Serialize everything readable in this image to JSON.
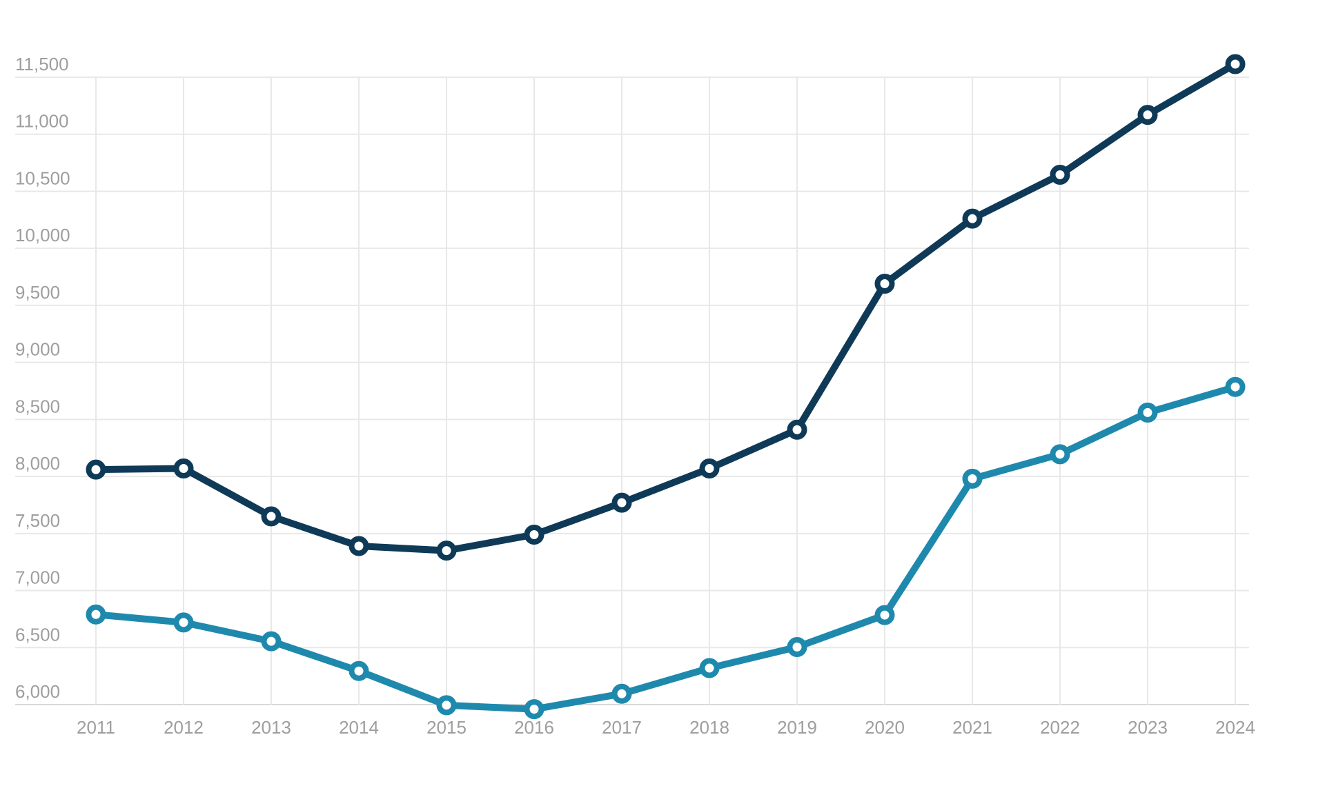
{
  "page": {
    "background": "#ffffff"
  },
  "chart_data": {
    "type": "line",
    "title": "",
    "xlabel": "",
    "ylabel": "",
    "categories": [
      "2011",
      "2012",
      "2013",
      "2014",
      "2015",
      "2016",
      "2017",
      "2018",
      "2019",
      "2020",
      "2021",
      "2022",
      "2023",
      "2024"
    ],
    "series": [
      {
        "name": "dark-navy-line",
        "color": "#0f3a57",
        "values": [
          8060,
          8070,
          7650,
          7390,
          7350,
          7490,
          7770,
          8070,
          8410,
          9690,
          10260,
          10645,
          11170,
          11615
        ]
      },
      {
        "name": "teal-line",
        "color": "#1e89ad",
        "values": [
          6790,
          6720,
          6555,
          6295,
          5995,
          5960,
          6095,
          6320,
          6505,
          6785,
          7980,
          8195,
          8560,
          8785
        ]
      }
    ],
    "y_ticks": [
      {
        "label": "11,500",
        "value": 11500
      },
      {
        "label": "11,000",
        "value": 11000
      },
      {
        "label": "10,500",
        "value": 10500
      },
      {
        "label": "10,000",
        "value": 10000
      },
      {
        "label": "9,500",
        "value": 9500
      },
      {
        "label": "9,000",
        "value": 9000
      },
      {
        "label": "8,500",
        "value": 8500
      },
      {
        "label": "8,000",
        "value": 8000
      },
      {
        "label": "7,500",
        "value": 7500
      },
      {
        "label": "7,000",
        "value": 7000
      },
      {
        "label": "6,500",
        "value": 6500
      },
      {
        "label": "6,000",
        "value": 6000
      }
    ],
    "ylim": [
      6000,
      11500
    ],
    "grid": true,
    "legend_position": "none",
    "style": {
      "grid_color": "#e8e8e8",
      "bottom_line_color": "#d9d9d9",
      "tick_label_color": "#9e9e9e",
      "marker_fill": "#ffffff",
      "line_width": 10,
      "marker_radius": 10.5,
      "marker_ring_width": 8,
      "tick_font_size": 26
    }
  }
}
